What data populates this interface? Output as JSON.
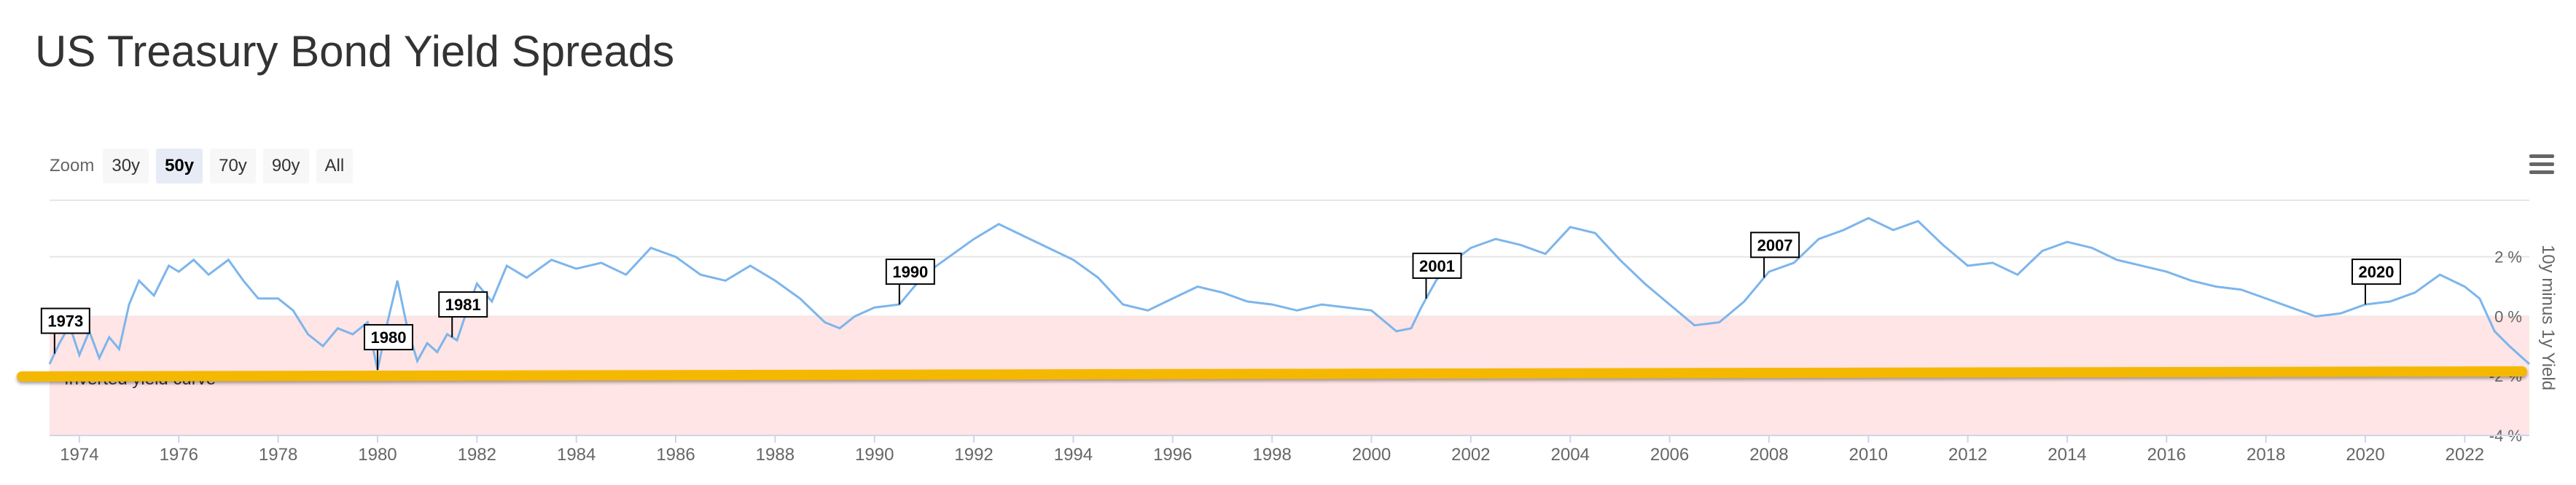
{
  "header": {
    "title": "US Treasury Bond Yield Spreads"
  },
  "toolbar": {
    "zoom_label": "Zoom",
    "zoom_buttons": [
      "30y",
      "50y",
      "70y",
      "90y",
      "All"
    ],
    "selected_zoom": "50y",
    "menu_icon": "hamburger-menu-icon"
  },
  "chart_data": {
    "type": "line",
    "ylabel": "10y minus 1y Yield",
    "ylim": [
      -4,
      3.9
    ],
    "xlim": [
      1973.4,
      2023.3
    ],
    "yticks": [
      {
        "value": 2,
        "label": "2 %"
      },
      {
        "value": 0,
        "label": "0 %"
      },
      {
        "value": -2,
        "label": "-2 %"
      },
      {
        "value": -4,
        "label": "-4 %"
      }
    ],
    "xticks": [
      "1974",
      "1976",
      "1978",
      "1980",
      "1982",
      "1984",
      "1986",
      "1988",
      "1990",
      "1992",
      "1994",
      "1996",
      "1998",
      "2000",
      "2002",
      "2004",
      "2006",
      "2008",
      "2010",
      "2012",
      "2014",
      "2016",
      "2018",
      "2020",
      "2022"
    ],
    "grid": true,
    "colors": {
      "line": "#7cb5ec",
      "band": "#ffe5e5",
      "highlight": "#f5b800"
    },
    "plot_band": {
      "from": -4,
      "to": 0,
      "label": "Inverted yield curve"
    },
    "flags": [
      {
        "x": 1973.5,
        "label": "1973"
      },
      {
        "x": 1980.0,
        "label": "1980"
      },
      {
        "x": 1981.5,
        "label": "1981"
      },
      {
        "x": 1990.5,
        "label": "1990"
      },
      {
        "x": 2001.1,
        "label": "2001"
      },
      {
        "x": 2007.9,
        "label": "2007"
      },
      {
        "x": 2020.0,
        "label": "2020"
      }
    ],
    "series": [
      {
        "x": [
          1973.4,
          1973.6,
          1973.8,
          1974.0,
          1974.2,
          1974.4,
          1974.6,
          1974.8,
          1975.0,
          1975.2,
          1975.5,
          1975.8,
          1976.0,
          1976.3,
          1976.6,
          1977.0,
          1977.3,
          1977.6,
          1978.0,
          1978.3,
          1978.6,
          1978.9,
          1979.2,
          1979.5,
          1979.8,
          1980.0,
          1980.2,
          1980.4,
          1980.6,
          1980.8,
          1981.0,
          1981.2,
          1981.4,
          1981.6,
          1981.8,
          1982.0,
          1982.3,
          1982.6,
          1983.0,
          1983.5,
          1984.0,
          1984.5,
          1985.0,
          1985.5,
          1986.0,
          1986.5,
          1987.0,
          1987.5,
          1988.0,
          1988.5,
          1989.0,
          1989.3,
          1989.6,
          1990.0,
          1990.5,
          1991.0,
          1991.5,
          1992.0,
          1992.5,
          1993.0,
          1993.5,
          1994.0,
          1994.5,
          1995.0,
          1995.5,
          1996.0,
          1996.5,
          1997.0,
          1997.5,
          1998.0,
          1998.5,
          1999.0,
          1999.5,
          2000.0,
          2000.5,
          2000.8,
          2001.0,
          2001.3,
          2001.6,
          2002.0,
          2002.5,
          2003.0,
          2003.5,
          2004.0,
          2004.5,
          2005.0,
          2005.5,
          2006.0,
          2006.5,
          2007.0,
          2007.5,
          2008.0,
          2008.5,
          2009.0,
          2009.5,
          2010.0,
          2010.5,
          2011.0,
          2011.5,
          2012.0,
          2012.5,
          2013.0,
          2013.5,
          2014.0,
          2014.5,
          2015.0,
          2015.5,
          2016.0,
          2016.5,
          2017.0,
          2017.5,
          2018.0,
          2018.5,
          2019.0,
          2019.5,
          2020.0,
          2020.5,
          2021.0,
          2021.5,
          2022.0,
          2022.3,
          2022.6,
          2022.9,
          2023.1,
          2023.3
        ],
        "y": [
          -1.6,
          -0.9,
          -0.3,
          -1.3,
          -0.5,
          -1.4,
          -0.7,
          -1.1,
          0.4,
          1.2,
          0.7,
          1.7,
          1.5,
          1.9,
          1.4,
          1.9,
          1.2,
          0.6,
          0.6,
          0.2,
          -0.6,
          -1.0,
          -0.4,
          -0.6,
          -0.2,
          -1.8,
          -0.2,
          1.2,
          -0.4,
          -1.5,
          -0.9,
          -1.2,
          -0.6,
          -0.8,
          0.2,
          1.1,
          0.5,
          1.7,
          1.3,
          1.9,
          1.6,
          1.8,
          1.4,
          2.3,
          2.0,
          1.4,
          1.2,
          1.7,
          1.2,
          0.6,
          -0.2,
          -0.4,
          0.0,
          0.3,
          0.4,
          1.4,
          2.0,
          2.6,
          3.1,
          2.7,
          2.3,
          1.9,
          1.3,
          0.4,
          0.2,
          0.6,
          1.0,
          0.8,
          0.5,
          0.4,
          0.2,
          0.4,
          0.3,
          0.2,
          -0.5,
          -0.4,
          0.3,
          1.2,
          1.8,
          2.3,
          2.6,
          2.4,
          2.1,
          3.0,
          2.8,
          1.9,
          1.1,
          0.4,
          -0.3,
          -0.2,
          0.5,
          1.5,
          1.8,
          2.6,
          2.9,
          3.3,
          2.9,
          3.2,
          2.4,
          1.7,
          1.8,
          1.4,
          2.2,
          2.5,
          2.3,
          1.9,
          1.7,
          1.5,
          1.2,
          1.0,
          0.9,
          0.6,
          0.3,
          0.0,
          0.1,
          0.4,
          0.5,
          0.8,
          1.4,
          1.0,
          0.6,
          -0.5,
          -1.0,
          -1.3,
          -1.6
        ]
      }
    ]
  }
}
